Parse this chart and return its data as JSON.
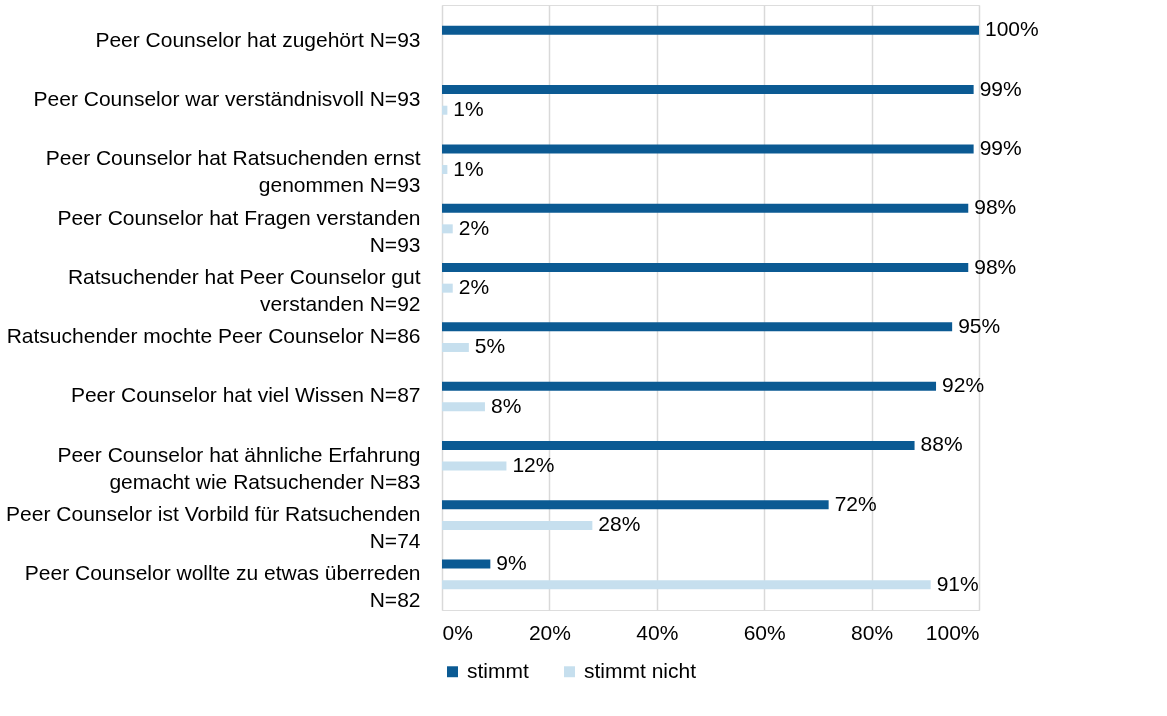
{
  "chart_data": {
    "type": "bar",
    "orientation": "horizontal",
    "categories": [
      "Peer Counselor hat zugehört N=93",
      "Peer Counselor war verständnisvoll N=93",
      "Peer Counselor hat Ratsuchenden ernst\ngenommen N=93",
      "Peer Counselor hat Fragen verstanden\nN=93",
      "Ratsuchender hat Peer Counselor gut\nverstanden N=92",
      "Ratsuchender mochte Peer Counselor N=86",
      "Peer Counselor hat viel Wissen N=87",
      "Peer Counselor hat ähnliche Erfahrung\ngemacht wie Ratsuchender N=83",
      "Peer Counselor ist Vorbild für Ratsuchenden\nN=74",
      "Peer Counselor wollte zu etwas überreden\nN=82"
    ],
    "series": [
      {
        "name": "stimmt",
        "color": "#0b5a93",
        "values": [
          100,
          99,
          99,
          98,
          98,
          95,
          92,
          88,
          72,
          9
        ],
        "value_labels": [
          "100%",
          "99%",
          "99%",
          "98%",
          "98%",
          "95%",
          "92%",
          "88%",
          "72%",
          "9%"
        ]
      },
      {
        "name": "stimmt nicht",
        "color": "#c6dfee",
        "values": [
          null,
          1,
          1,
          2,
          2,
          5,
          8,
          12,
          28,
          91
        ],
        "value_labels": [
          null,
          "1%",
          "1%",
          "2%",
          "2%",
          "5%",
          "8%",
          "12%",
          "28%",
          "91%"
        ]
      }
    ],
    "xlim": [
      0,
      100
    ],
    "xticks": [
      {
        "value": 0,
        "label": "0%"
      },
      {
        "value": 20,
        "label": "20%"
      },
      {
        "value": 40,
        "label": "40%"
      },
      {
        "value": 60,
        "label": "60%"
      },
      {
        "value": 80,
        "label": "80%"
      },
      {
        "value": 100,
        "label": "100%"
      }
    ],
    "grid": "x",
    "legend": "bottom"
  }
}
